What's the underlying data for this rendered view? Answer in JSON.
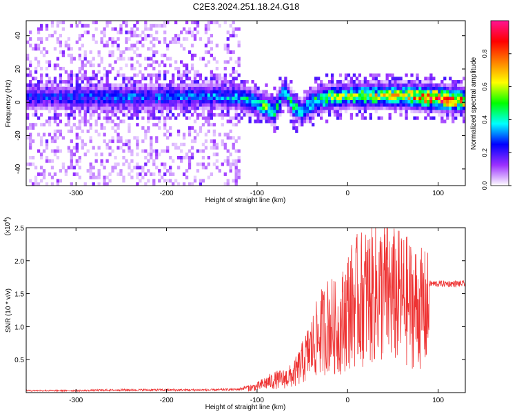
{
  "figure_title": "C2E3.2024.251.18.24.G18",
  "chart_data": [
    {
      "type": "heatmap",
      "title": "C2E3.2024.251.18.24.G18",
      "xlabel": "Height of straight line (km)",
      "ylabel": "Frequency (Hz)",
      "xlim": [
        -355,
        130
      ],
      "ylim": [
        -50,
        49
      ],
      "x_ticks": [
        -300,
        -200,
        -100,
        0,
        100
      ],
      "y_ticks": [
        -40,
        -20,
        0,
        20,
        40
      ],
      "colorbar": {
        "label": "Normalized spectral amplitude",
        "range": [
          0,
          1
        ],
        "ticks": [
          0.0,
          0.2,
          0.4,
          0.6,
          0.8
        ],
        "tick_labels": [
          "0.0",
          "0.2",
          "0.4",
          "0.6",
          "0.8"
        ],
        "colormap": [
          "#ffffff",
          "#9b30ff",
          "#0000ff",
          "#00ffff",
          "#00ff00",
          "#ffff00",
          "#ff8000",
          "#ff0000",
          "#ff1493"
        ]
      },
      "ridge": [
        {
          "x": -355,
          "y": 3,
          "amp": 0.25
        },
        {
          "x": -300,
          "y": 3,
          "amp": 0.28
        },
        {
          "x": -250,
          "y": 3,
          "amp": 0.3
        },
        {
          "x": -200,
          "y": 3,
          "amp": 0.3
        },
        {
          "x": -150,
          "y": 4,
          "amp": 0.32
        },
        {
          "x": -120,
          "y": 3,
          "amp": 0.38
        },
        {
          "x": -100,
          "y": 0,
          "amp": 0.45
        },
        {
          "x": -90,
          "y": -3,
          "amp": 0.5
        },
        {
          "x": -80,
          "y": -5,
          "amp": 0.5
        },
        {
          "x": -70,
          "y": 7,
          "amp": 0.4
        },
        {
          "x": -60,
          "y": -2,
          "amp": 0.45
        },
        {
          "x": -50,
          "y": -6,
          "amp": 0.45
        },
        {
          "x": -40,
          "y": 0,
          "amp": 0.5
        },
        {
          "x": -20,
          "y": 3,
          "amp": 0.55
        },
        {
          "x": 0,
          "y": 4,
          "amp": 0.55
        },
        {
          "x": 30,
          "y": 4,
          "amp": 0.6
        },
        {
          "x": 60,
          "y": 4,
          "amp": 0.65
        },
        {
          "x": 90,
          "y": 3,
          "amp": 0.85
        },
        {
          "x": 110,
          "y": 2,
          "amp": 0.92
        },
        {
          "x": 130,
          "y": 1,
          "amp": 0.7
        }
      ],
      "noise_region_x": [
        -355,
        -120
      ]
    },
    {
      "type": "line",
      "xlabel": "Height of straight line (km)",
      "ylabel": "SNR (10 * v/v)",
      "y_multiplier_label": "(x10",
      "y_multiplier_exponent": "4",
      "y_multiplier_close": ")",
      "xlim": [
        -355,
        130
      ],
      "ylim": [
        0,
        2.5
      ],
      "x_ticks": [
        -300,
        -200,
        -100,
        0,
        100
      ],
      "y_ticks": [
        0.5,
        1.0,
        1.5,
        2.0,
        2.5
      ],
      "y_tick_labels": [
        "0.5",
        "1.0",
        "1.5",
        "2.0",
        "2.5"
      ],
      "color": "#ee3333",
      "series": [
        {
          "x": [
            -355,
            -300,
            -250,
            -200,
            -150,
            -120,
            -100,
            -90,
            -80,
            -70,
            -60,
            -50,
            -40,
            -30,
            -20,
            -10,
            0,
            10,
            20,
            30,
            40,
            50,
            60,
            70,
            80,
            90,
            100,
            110,
            120,
            130
          ],
          "y": [
            0.03,
            0.03,
            0.04,
            0.04,
            0.04,
            0.05,
            0.12,
            0.2,
            0.25,
            0.28,
            0.35,
            0.6,
            0.9,
            1.2,
            1.4,
            1.25,
            1.7,
            1.85,
            1.95,
            2.0,
            2.05,
            1.95,
            1.9,
            1.8,
            1.7,
            1.65,
            1.65,
            1.65,
            1.65,
            1.65
          ]
        }
      ]
    }
  ]
}
